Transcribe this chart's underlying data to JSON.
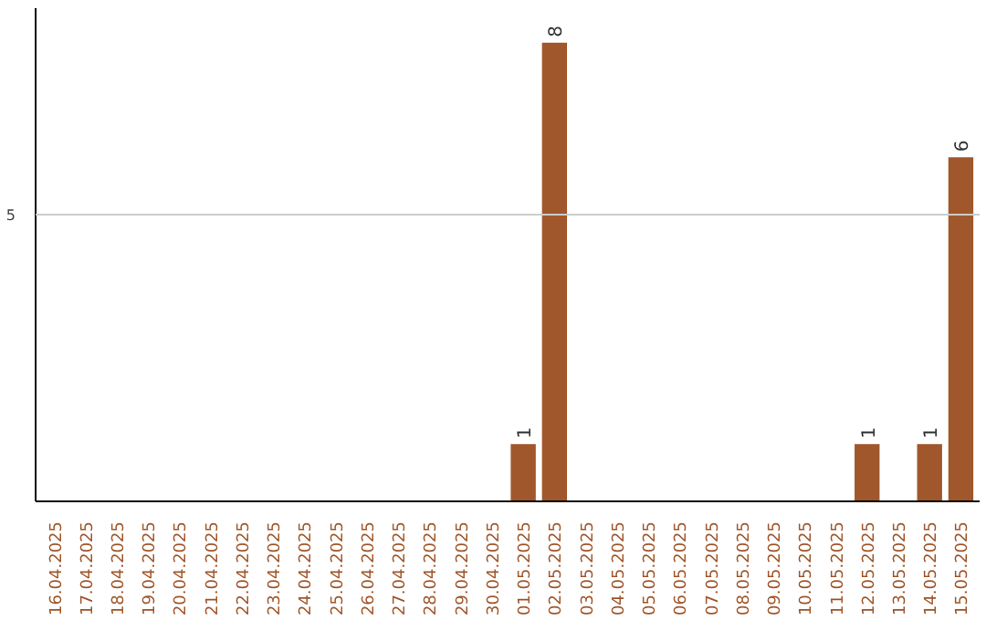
{
  "chart_data": {
    "type": "bar",
    "categories": [
      "16.04.2025",
      "17.04.2025",
      "18.04.2025",
      "19.04.2025",
      "20.04.2025",
      "21.04.2025",
      "22.04.2025",
      "23.04.2025",
      "24.04.2025",
      "25.04.2025",
      "26.04.2025",
      "27.04.2025",
      "28.04.2025",
      "29.04.2025",
      "30.04.2025",
      "01.05.2025",
      "02.05.2025",
      "03.05.2025",
      "04.05.2025",
      "05.05.2025",
      "06.05.2025",
      "07.05.2025",
      "08.05.2025",
      "09.05.2025",
      "10.05.2025",
      "11.05.2025",
      "12.05.2025",
      "13.05.2025",
      "14.05.2025",
      "15.05.2025"
    ],
    "values": [
      null,
      null,
      null,
      null,
      null,
      null,
      null,
      null,
      null,
      null,
      null,
      null,
      null,
      null,
      null,
      1,
      8,
      null,
      null,
      null,
      null,
      null,
      null,
      null,
      null,
      null,
      1,
      null,
      1,
      6
    ],
    "data_labels": true,
    "ylim": [
      0,
      8.6
    ],
    "color": "#a0572b",
    "ref_lines": [
      {
        "axis": "y",
        "value": 5,
        "label": "5",
        "color": "#cccccc"
      }
    ]
  }
}
